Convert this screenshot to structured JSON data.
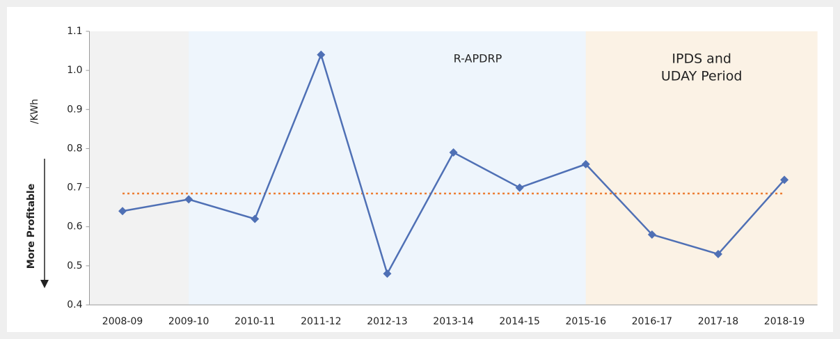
{
  "chart_data": {
    "type": "line",
    "y_label": "/KWh",
    "direction_label": "More Profitable",
    "categories": [
      "2008-09",
      "2009-10",
      "2010-11",
      "2011-12",
      "2012-13",
      "2013-14",
      "2014-15",
      "2015-16",
      "2016-17",
      "2017-18",
      "2018-19"
    ],
    "series": [
      {
        "color": "#4f70b5",
        "values": [
          0.64,
          0.67,
          0.62,
          1.04,
          0.48,
          0.79,
          0.7,
          0.76,
          0.58,
          0.53,
          0.72
        ]
      }
    ],
    "average_line": {
      "value": 0.685,
      "color": "#ed7d31"
    },
    "regions": [
      {
        "from": "2009-10",
        "to": "2015-16",
        "color": "#eef5fc",
        "label": [
          "R-APDRP"
        ]
      },
      {
        "from": "2015-16",
        "to": null,
        "color": "#fbf2e5",
        "label": [
          "IPDS and",
          "UDAY Period"
        ]
      }
    ],
    "plot_background": "#f2f2f2",
    "ylim": [
      0.4,
      1.1
    ],
    "yticks": [
      0.4,
      0.5,
      0.6,
      0.7,
      0.8,
      0.9,
      {
        "value": 1,
        "label": "1.0"
      },
      1.1
    ]
  }
}
